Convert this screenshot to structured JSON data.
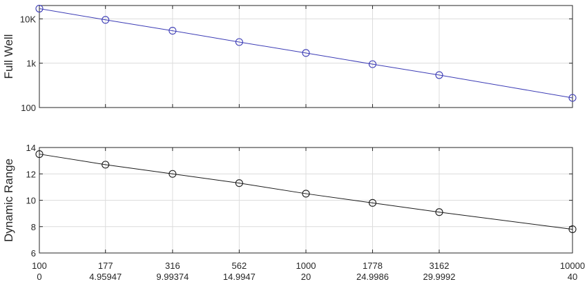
{
  "chart_data": [
    {
      "type": "line",
      "ylabel": "Full Well",
      "yscale": "log",
      "ylim": [
        100,
        20000
      ],
      "yticks": [
        100,
        1000,
        10000
      ],
      "ytick_labels": [
        "100",
        "1k",
        "10K"
      ],
      "xlim": [
        100,
        10000
      ],
      "x": [
        100,
        177,
        316,
        562,
        1000,
        1778,
        3162,
        10000
      ],
      "grid": true,
      "series": [
        {
          "color": "#3b3bb5",
          "marker": "circle-open",
          "values": [
            17000,
            9500,
            5400,
            3000,
            1700,
            950,
            540,
            165
          ]
        }
      ]
    },
    {
      "type": "line",
      "ylabel": "Dynamic Range",
      "yscale": "linear",
      "ylim": [
        6,
        14
      ],
      "yticks": [
        6,
        8,
        10,
        12,
        14
      ],
      "ytick_labels": [
        "6",
        "8",
        "10",
        "12",
        "14"
      ],
      "xlim": [
        100,
        10000
      ],
      "x": [
        100,
        177,
        316,
        562,
        1000,
        1778,
        3162,
        10000
      ],
      "xtick_labels_row1": [
        "100",
        "177",
        "316",
        "562",
        "1000",
        "1778",
        "3162",
        "10000"
      ],
      "xtick_labels_row2": [
        "0",
        "4.95947",
        "9.99374",
        "14.9947",
        "20",
        "24.9986",
        "29.9992",
        "40"
      ],
      "grid": true,
      "series": [
        {
          "color": "#1a1a1a",
          "marker": "circle-open",
          "values": [
            13.5,
            12.7,
            12.0,
            11.3,
            10.5,
            9.8,
            9.1,
            7.8
          ]
        }
      ]
    }
  ]
}
